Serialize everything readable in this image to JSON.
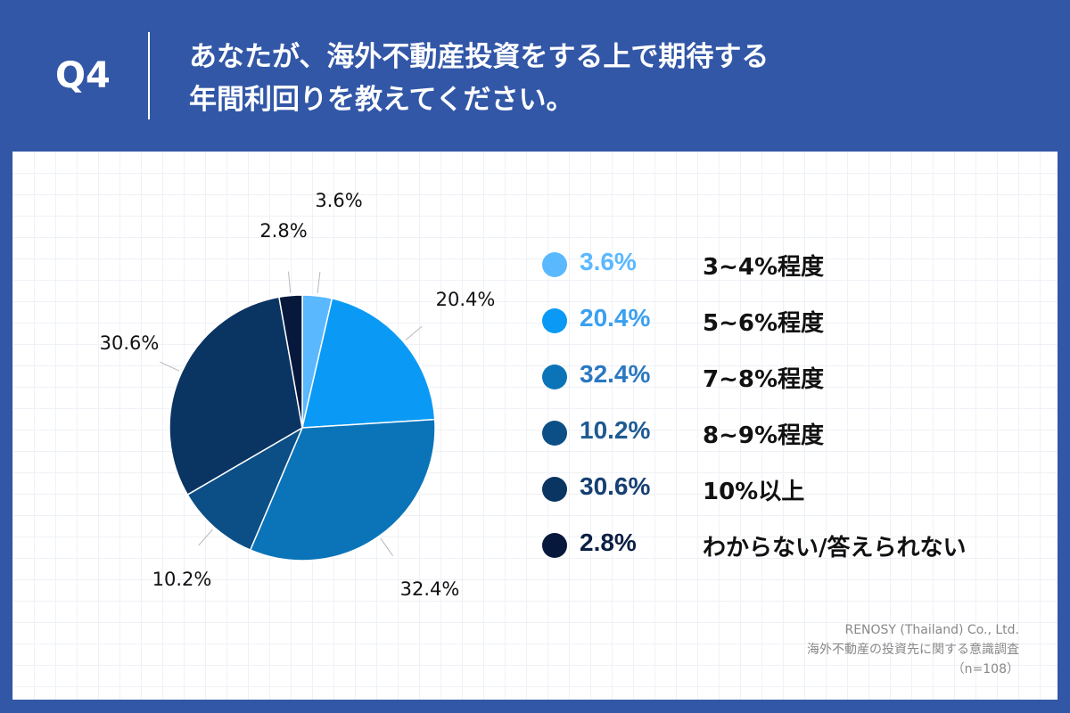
{
  "header": {
    "q_label": "Q4",
    "question_line1": "あなたが、海外不動産投資をする上で期待する",
    "question_line2": "年間利回りを教えてください。"
  },
  "chart_data": {
    "type": "pie",
    "slices": [
      {
        "label": "3~4%程度",
        "value": 3.6,
        "value_label": "3.6%",
        "color": "#5ab8ff"
      },
      {
        "label": "5~6%程度",
        "value": 20.4,
        "value_label": "20.4%",
        "color": "#0a9af5"
      },
      {
        "label": "7~8%程度",
        "value": 32.4,
        "value_label": "32.4%",
        "color": "#0b74b8"
      },
      {
        "label": "8~9%程度",
        "value": 10.2,
        "value_label": "10.2%",
        "color": "#0b4f86"
      },
      {
        "label": "10%以上",
        "value": 30.6,
        "value_label": "30.6%",
        "color": "#0a3462"
      },
      {
        "label": "わからない/答えられない",
        "value": 2.8,
        "value_label": "2.8%",
        "color": "#06183c"
      }
    ]
  },
  "colors": {
    "header_bg": "#3257a7",
    "legend_text": [
      "#5ab8ff",
      "#3aa0f0",
      "#2a78c0",
      "#1e5a92",
      "#163f73",
      "#0c1f44"
    ]
  },
  "source": {
    "line1": "RENOSY (Thailand) Co., Ltd.",
    "line2": "海外不動産の投資先に関する意識調査",
    "line3": "（n=108）"
  }
}
